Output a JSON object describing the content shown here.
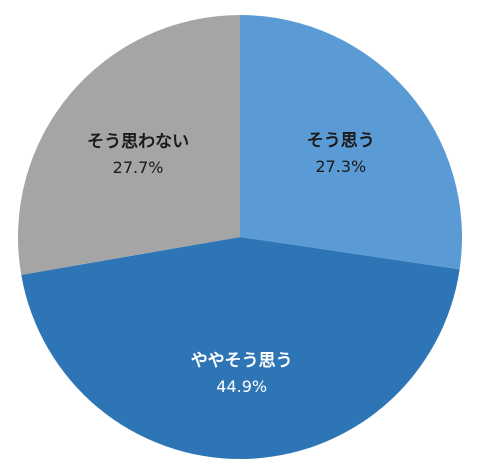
{
  "chart_data": {
    "type": "pie",
    "title": "",
    "start_angle_deg": 0,
    "direction": "clockwise",
    "slices": [
      {
        "label": "そう思う",
        "value": 27.3,
        "display": "27.3%",
        "color": "#5b9bd5",
        "text_color": "#1a1a1a"
      },
      {
        "label": "ややそう思う",
        "value": 44.9,
        "display": "44.9%",
        "color": "#2e75b6",
        "text_color": "#ffffff"
      },
      {
        "label": "そう思わない",
        "value": 27.7,
        "display": "27.7%",
        "color": "#a5a5a5",
        "text_color": "#1a1a1a"
      }
    ],
    "legend": "none",
    "data_labels": "inside"
  }
}
